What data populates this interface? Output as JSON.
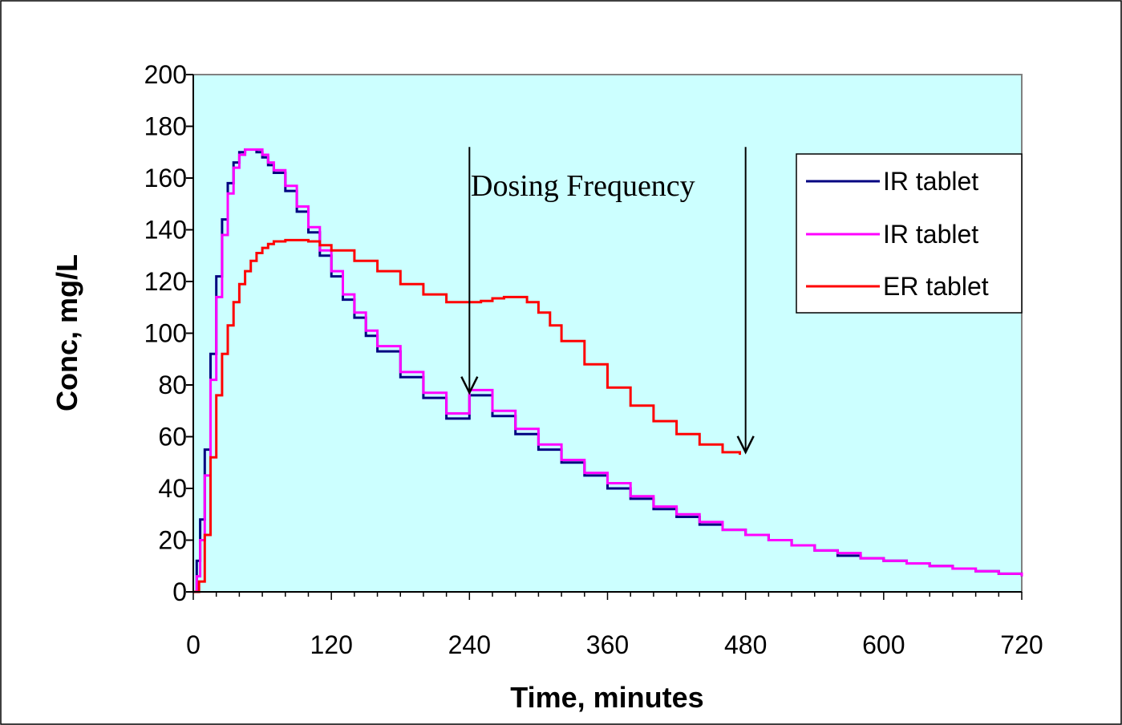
{
  "chart_data": {
    "type": "line",
    "title": "",
    "xlabel": "Time, minutes",
    "ylabel": "Conc, mg/L",
    "xlim": [
      0,
      720
    ],
    "ylim": [
      0,
      200
    ],
    "xticks": [
      0,
      120,
      240,
      360,
      480,
      600,
      720
    ],
    "yticks": [
      0,
      20,
      40,
      60,
      80,
      100,
      120,
      140,
      160,
      180,
      200
    ],
    "grid": false,
    "legend_position": "top-right",
    "plot_background": "#ccffff",
    "series": [
      {
        "name": "IR tablet",
        "color": "#000080",
        "x": [
          0,
          3,
          6,
          10,
          15,
          20,
          25,
          30,
          35,
          40,
          45,
          50,
          55,
          60,
          65,
          70,
          80,
          90,
          100,
          110,
          120,
          130,
          140,
          150,
          160,
          180,
          200,
          220,
          240,
          260,
          280,
          300,
          320,
          340,
          360,
          380,
          400,
          420,
          440,
          460,
          480,
          500,
          520,
          540,
          560,
          580,
          600,
          620,
          640,
          660,
          680,
          700,
          720
        ],
        "y": [
          0,
          12,
          28,
          55,
          92,
          122,
          144,
          158,
          166,
          170,
          171,
          171,
          170,
          168,
          165,
          162,
          155,
          147,
          139,
          130,
          122,
          113,
          106,
          99,
          93,
          83,
          75,
          67,
          76,
          68,
          61,
          55,
          50,
          45,
          40,
          36,
          32,
          29,
          26,
          24,
          22,
          20,
          18,
          16,
          14,
          13,
          12,
          11,
          10,
          9,
          8,
          7,
          6
        ]
      },
      {
        "name": "IR tablet",
        "color": "#ff00ff",
        "x": [
          0,
          3,
          6,
          10,
          15,
          20,
          25,
          30,
          35,
          40,
          45,
          50,
          55,
          60,
          65,
          70,
          80,
          90,
          100,
          110,
          120,
          130,
          140,
          150,
          160,
          180,
          200,
          220,
          240,
          260,
          280,
          300,
          320,
          340,
          360,
          380,
          400,
          420,
          440,
          460,
          480,
          500,
          520,
          540,
          560,
          580,
          600,
          620,
          640,
          660,
          680,
          700,
          720
        ],
        "y": [
          0,
          6,
          20,
          45,
          82,
          114,
          138,
          154,
          164,
          169,
          171,
          171,
          171,
          169,
          166,
          163,
          157,
          149,
          141,
          132,
          124,
          115,
          108,
          101,
          95,
          85,
          77,
          69,
          78,
          70,
          63,
          57,
          51,
          46,
          42,
          37,
          33,
          30,
          27,
          24,
          22,
          20,
          18,
          16,
          15,
          13,
          12,
          11,
          10,
          9,
          8,
          7,
          6
        ]
      },
      {
        "name": "ER tablet",
        "color": "#ff0000",
        "x": [
          0,
          5,
          10,
          15,
          20,
          25,
          30,
          35,
          40,
          45,
          50,
          55,
          60,
          65,
          70,
          80,
          90,
          100,
          110,
          120,
          140,
          160,
          180,
          200,
          220,
          240,
          250,
          260,
          270,
          280,
          290,
          300,
          310,
          320,
          340,
          360,
          380,
          400,
          420,
          440,
          460,
          475
        ],
        "y": [
          0,
          4,
          22,
          52,
          76,
          92,
          103,
          112,
          119,
          124,
          128,
          131,
          133,
          134.5,
          135.5,
          136,
          136,
          135.5,
          134,
          132,
          128,
          124,
          119,
          115,
          112,
          112,
          112.5,
          113.5,
          114,
          114,
          112,
          108,
          103,
          97,
          88,
          79,
          72,
          66,
          61,
          57,
          54,
          53
        ]
      }
    ],
    "annotations": [
      {
        "text": "Dosing Frequency",
        "arrows": [
          {
            "x": 240,
            "y_from": 172,
            "y_to": 77
          },
          {
            "x": 480,
            "y_from": 172,
            "y_to": 54
          }
        ]
      }
    ]
  }
}
